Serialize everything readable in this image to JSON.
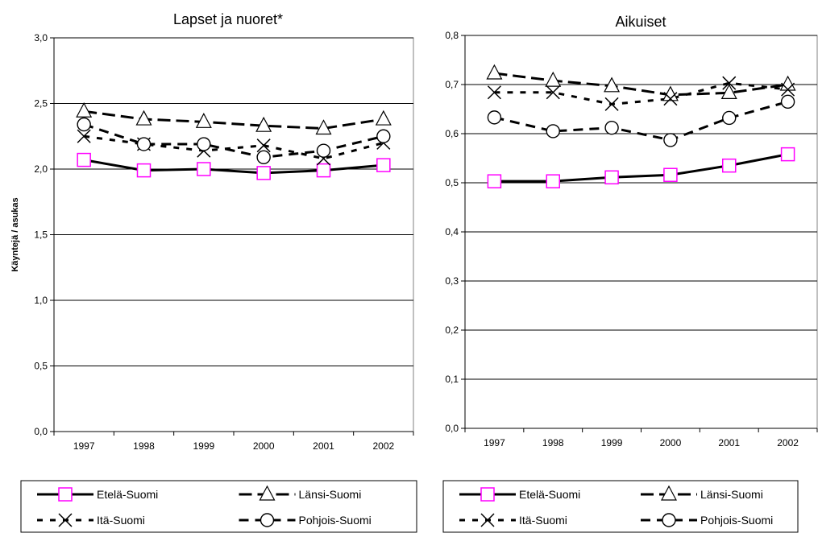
{
  "chart_data": [
    {
      "type": "line",
      "title": "Lapset ja nuoret*",
      "ylabel": "Käyntejä / asukas",
      "xlabel": "",
      "categories": [
        "1997",
        "1998",
        "1999",
        "2000",
        "2001",
        "2002"
      ],
      "ylim": [
        0,
        3.0
      ],
      "yticks": [
        "0,0",
        "0,5",
        "1,0",
        "1,5",
        "2,0",
        "2,5",
        "3,0"
      ],
      "grid": true,
      "legend": "bottom",
      "series": [
        {
          "name": "Etelä-Suomi",
          "values": [
            2.07,
            1.99,
            2.0,
            1.97,
            1.99,
            2.03
          ]
        },
        {
          "name": "Länsi-Suomi",
          "values": [
            2.44,
            2.38,
            2.36,
            2.33,
            2.31,
            2.38
          ]
        },
        {
          "name": "Itä-Suomi",
          "values": [
            2.25,
            2.19,
            2.14,
            2.18,
            2.08,
            2.2
          ]
        },
        {
          "name": "Pohjois-Suomi",
          "values": [
            2.34,
            2.19,
            2.19,
            2.09,
            2.14,
            2.25
          ]
        }
      ]
    },
    {
      "type": "line",
      "title": "Aikuiset",
      "ylabel": "",
      "xlabel": "",
      "categories": [
        "1997",
        "1998",
        "1999",
        "2000",
        "2001",
        "2002"
      ],
      "ylim": [
        0,
        0.8
      ],
      "yticks": [
        "0,0",
        "0,1",
        "0,2",
        "0,3",
        "0,4",
        "0,5",
        "0,6",
        "0,7",
        "0,8"
      ],
      "grid": true,
      "legend": "bottom",
      "series": [
        {
          "name": "Etelä-Suomi",
          "values": [
            0.503,
            0.503,
            0.511,
            0.516,
            0.535,
            0.558
          ]
        },
        {
          "name": "Länsi-Suomi",
          "values": [
            0.723,
            0.708,
            0.697,
            0.679,
            0.683,
            0.7
          ]
        },
        {
          "name": "Itä-Suomi",
          "values": [
            0.684,
            0.684,
            0.66,
            0.671,
            0.703,
            0.69
          ]
        },
        {
          "name": "Pohjois-Suomi",
          "values": [
            0.633,
            0.605,
            0.612,
            0.587,
            0.632,
            0.665
          ]
        }
      ]
    }
  ],
  "styles": {
    "series_colors": [
      "#000000",
      "#000000",
      "#000000",
      "#000000"
    ],
    "marker_colors": [
      "#ff00ff",
      "#000000",
      "#000000",
      "#000000"
    ],
    "series_markers": [
      "square",
      "triangle",
      "x",
      "circle"
    ],
    "series_dash": [
      "solid",
      "long-dash",
      "dotted-dash",
      "dash"
    ],
    "gridline_color": "#000000",
    "plot_border_color": "#808080",
    "background": "#ffffff"
  }
}
